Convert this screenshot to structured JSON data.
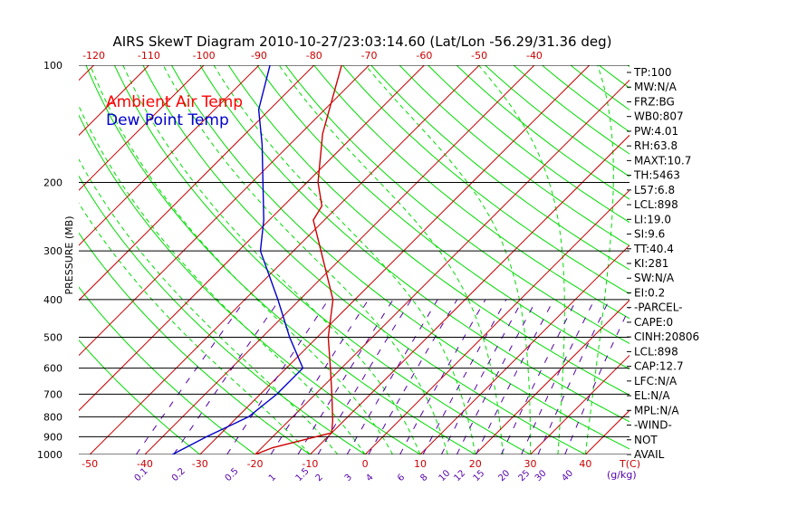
{
  "chart_data": {
    "type": "skewt",
    "title": "AIRS SkewT Diagram 2010-10-27/23:03:14.60 (Lat/Lon -56.29/31.36 deg)",
    "ylabel": "PRESSURE (MB)",
    "xlabel_unit": "T(C)",
    "mixing_ratio_unit": "(g/kg)",
    "y_scale": "log",
    "ylim": [
      1000,
      100
    ],
    "xlim_bottom": [
      -52,
      48
    ],
    "pressure_ticks": [
      100,
      200,
      300,
      400,
      500,
      600,
      700,
      800,
      900,
      1000
    ],
    "bottom_temp_ticks": [
      "-50",
      "-40",
      "-30",
      "-20",
      "-10",
      "0",
      "10",
      "20",
      "30",
      "40"
    ],
    "top_temp_ticks": [
      "-120",
      "-110",
      "-100",
      "-90",
      "-80",
      "-70",
      "-60",
      "-50",
      "-40"
    ],
    "mixing_ratio_labels": [
      "0.1",
      "0.2",
      "0.5",
      "1",
      "1.5",
      "2",
      "3",
      "4",
      "6",
      "8",
      "10",
      "12",
      "15",
      "20",
      "25",
      "30",
      "40"
    ],
    "legend": [
      {
        "name": "Ambient Air Temp",
        "color": "#ff0000"
      },
      {
        "name": "Dew Point Temp",
        "color": "#0000cc"
      }
    ],
    "series": [
      {
        "name": "Ambient Air Temp",
        "color": "#cc0000",
        "pressure": [
          1000,
          960,
          880,
          820,
          700,
          600,
          500,
          400,
          300,
          250,
          230,
          200,
          150,
          100
        ],
        "temp": [
          -20,
          -18,
          -10,
          -12,
          -17,
          -22,
          -28,
          -34,
          -45,
          -52,
          -53,
          -58,
          -66,
          -75
        ]
      },
      {
        "name": "Dew Point Temp",
        "color": "#0000cc",
        "pressure": [
          1000,
          900,
          800,
          700,
          600,
          500,
          400,
          300,
          250,
          200,
          160,
          130,
          100
        ],
        "temp": [
          -35,
          -32,
          -28,
          -27,
          -27,
          -35,
          -44,
          -56,
          -61,
          -68,
          -75,
          -82,
          -88
        ]
      }
    ],
    "indices": [
      "TP:100",
      "MW:N/A",
      "FRZ:BG",
      "WB0:807",
      "PW:4.01",
      "RH:63.8",
      "MAXT:10.7",
      "TH:5463",
      "L57:6.8",
      "LCL:898",
      "LI:19.0",
      "SI:9.6",
      "TT:40.4",
      "KI:281",
      "SW:N/A",
      "EI:0.2",
      "-PARCEL-",
      "CAPE:0",
      "CINH:20806",
      "LCL:898",
      "CAP:12.7",
      "LFC:N/A",
      "EL:N/A",
      "MPL:N/A",
      "-WIND-",
      "NOT",
      "AVAIL"
    ],
    "colors": {
      "isotherm": "#cc0000",
      "dry_adiabat": "#00dd00",
      "moist_adiabat": "#00dd00",
      "mixing_ratio": "#5500aa",
      "isobar": "#000000",
      "legend_temp": "#ff0000",
      "legend_dew": "#0000cc"
    }
  }
}
